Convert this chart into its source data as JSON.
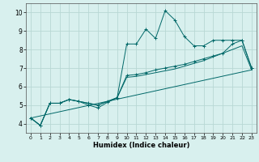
{
  "xlabel": "Humidex (Indice chaleur)",
  "bg_color": "#d8f0ee",
  "grid_color": "#b8d8d4",
  "line_color": "#006868",
  "xlim": [
    -0.5,
    23.5
  ],
  "ylim": [
    3.5,
    10.5
  ],
  "xticks": [
    0,
    1,
    2,
    3,
    4,
    5,
    6,
    7,
    8,
    9,
    10,
    11,
    12,
    13,
    14,
    15,
    16,
    17,
    18,
    19,
    20,
    21,
    22,
    23
  ],
  "yticks": [
    4,
    5,
    6,
    7,
    8,
    9,
    10
  ],
  "series": [
    {
      "x": [
        0,
        1,
        2,
        3,
        4,
        5,
        6,
        7,
        8,
        9,
        10,
        11,
        12,
        13,
        14,
        15,
        16,
        17,
        18,
        19,
        20,
        21,
        22,
        23
      ],
      "y": [
        4.3,
        3.9,
        5.1,
        5.1,
        5.3,
        5.2,
        5.0,
        4.85,
        5.15,
        5.4,
        8.3,
        8.3,
        9.1,
        8.6,
        10.1,
        9.6,
        8.7,
        8.2,
        8.2,
        8.5,
        8.5,
        8.5,
        8.5,
        7.0
      ],
      "marker": "+"
    },
    {
      "x": [
        0,
        1,
        2,
        3,
        4,
        5,
        6,
        7,
        8,
        9,
        10,
        11,
        12,
        13,
        14,
        15,
        16,
        17,
        18,
        19,
        20,
        21,
        22,
        23
      ],
      "y": [
        4.3,
        3.9,
        5.1,
        5.1,
        5.3,
        5.2,
        5.1,
        5.0,
        5.2,
        5.4,
        6.6,
        6.65,
        6.75,
        6.9,
        7.0,
        7.1,
        7.2,
        7.35,
        7.5,
        7.65,
        7.8,
        8.3,
        8.5,
        7.0
      ],
      "marker": "+"
    },
    {
      "x": [
        0,
        1,
        2,
        3,
        4,
        5,
        6,
        7,
        8,
        9,
        10,
        11,
        12,
        13,
        14,
        15,
        16,
        17,
        18,
        19,
        20,
        21,
        22,
        23
      ],
      "y": [
        4.3,
        3.9,
        5.1,
        5.1,
        5.3,
        5.2,
        5.1,
        5.0,
        5.2,
        5.4,
        6.5,
        6.55,
        6.65,
        6.75,
        6.85,
        6.95,
        7.1,
        7.25,
        7.4,
        7.6,
        7.8,
        8.0,
        8.2,
        6.9
      ],
      "marker": null
    },
    {
      "x": [
        0,
        23
      ],
      "y": [
        4.3,
        6.9
      ],
      "marker": null
    }
  ]
}
